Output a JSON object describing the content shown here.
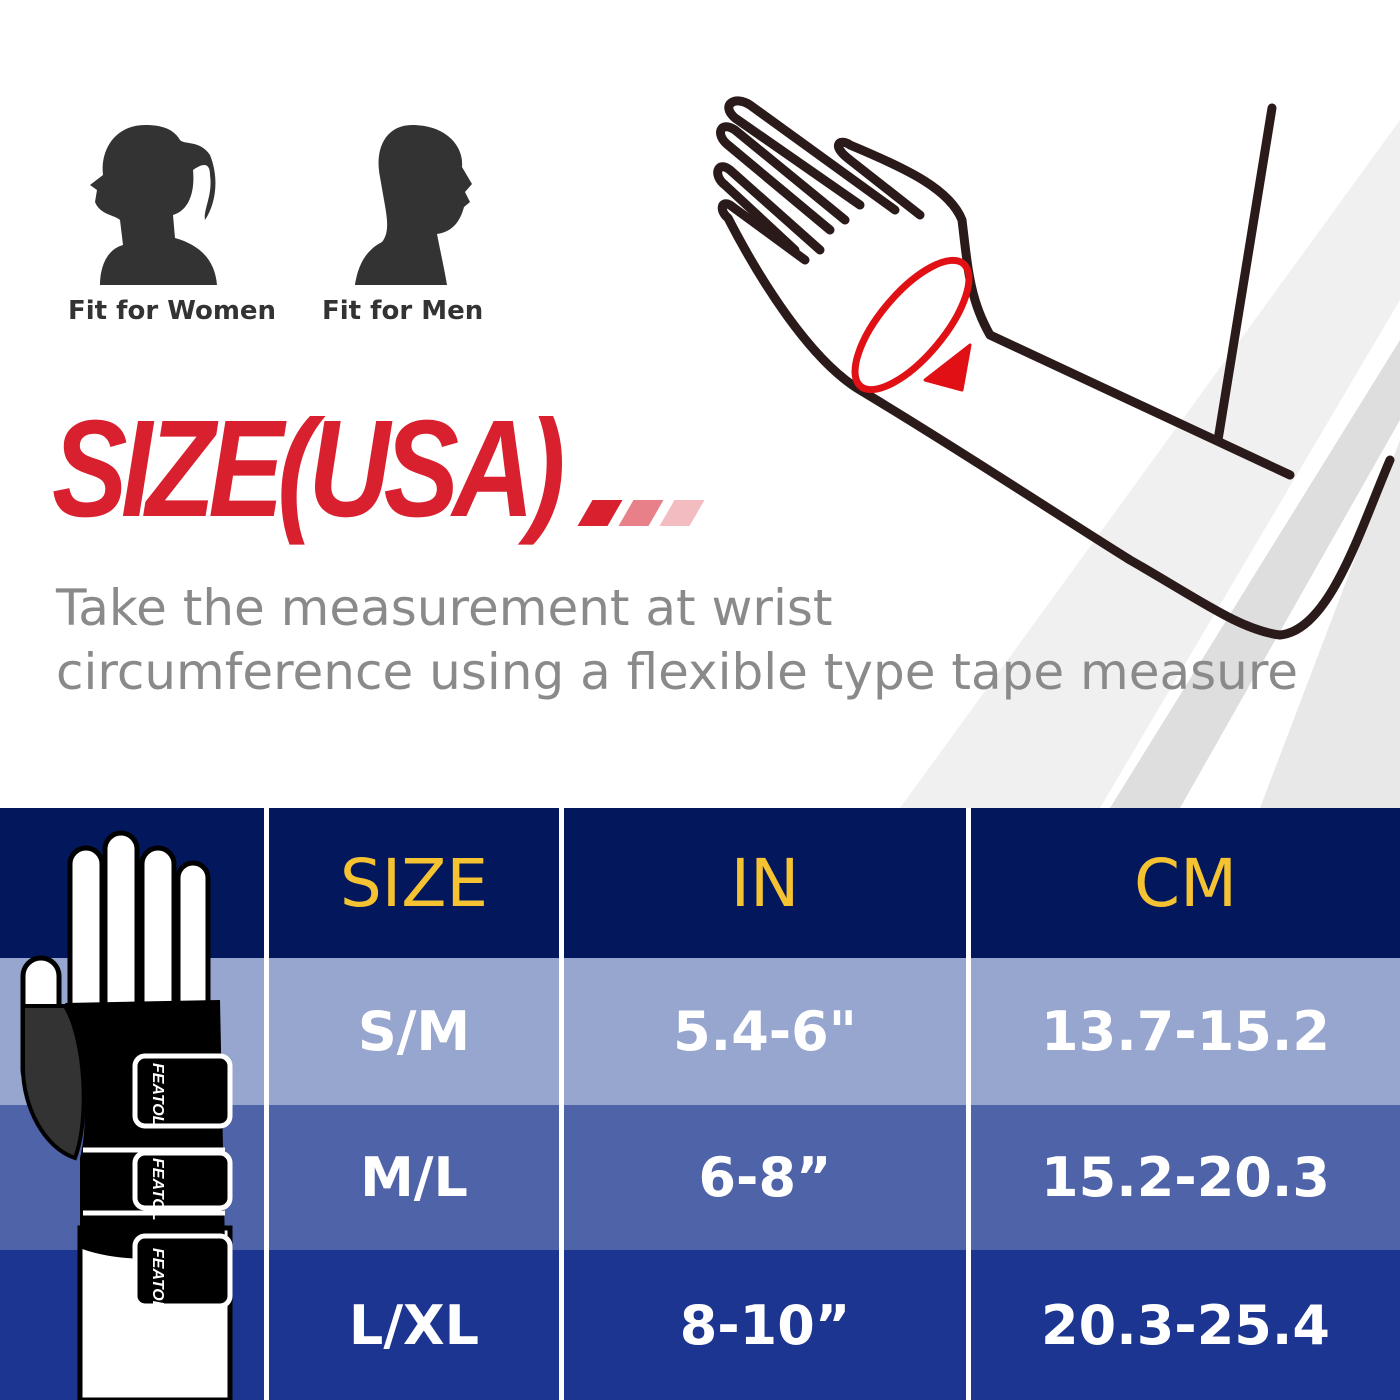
{
  "audience": {
    "women_label": "Fit for Women",
    "men_label": "Fit for Men"
  },
  "title": "SIZE(USA)",
  "instruction": {
    "line1": "Take the measurement at wrist",
    "line2": "circumference using a flexible type tape measure"
  },
  "brand_logo_text": "FEATOL",
  "size_table": {
    "headers": [
      "SIZE",
      "IN",
      "CM"
    ],
    "rows": [
      [
        "S/M",
        "5.4-6\"",
        "13.7-15.2"
      ],
      [
        "M/L",
        "6-8”",
        "15.2-20.3"
      ],
      [
        "L/XL",
        "8-10”",
        "20.3-25.4"
      ]
    ]
  },
  "colors": {
    "title_red": "#d8202f",
    "header_bg": "#03175c",
    "header_text": "#f5c232",
    "row1_bg": "#97a6cf",
    "row2_bg": "#4f63a8",
    "row3_bg": "#1c3590"
  }
}
